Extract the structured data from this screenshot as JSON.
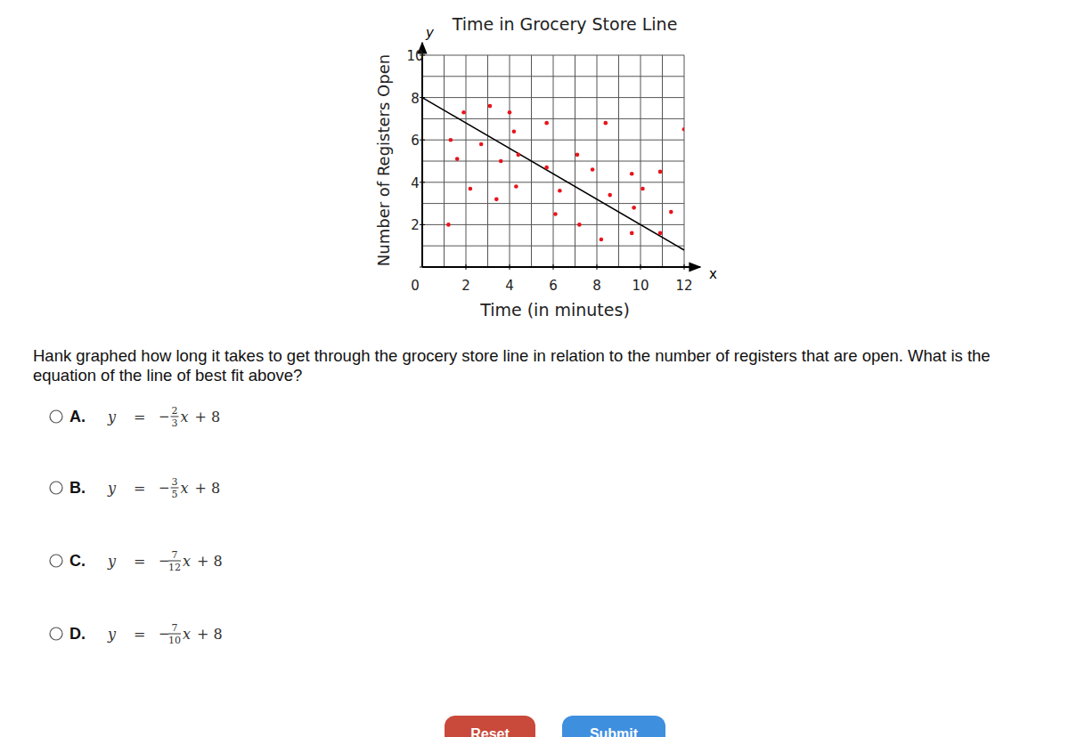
{
  "chart_data": {
    "type": "scatter",
    "title": "Time in Grocery Store Line",
    "x_label": "Time (in minutes)",
    "y_label": "Number of Registers Open",
    "x_symbol": "x",
    "y_symbol": "y",
    "x": [
      1.2,
      1.3,
      1.6,
      1.9,
      2.2,
      2.7,
      3.1,
      3.4,
      3.6,
      4.0,
      4.2,
      4.3,
      4.4,
      5.7,
      5.7,
      6.1,
      6.3,
      7.1,
      7.2,
      7.8,
      8.2,
      8.4,
      8.6,
      9.6,
      9.6,
      9.7,
      10.1,
      10.9,
      10.9,
      11.4,
      12.0
    ],
    "values": [
      2.0,
      6.0,
      5.1,
      7.3,
      3.7,
      5.8,
      7.6,
      3.2,
      5.0,
      7.3,
      6.4,
      3.8,
      5.3,
      6.8,
      4.7,
      2.5,
      3.6,
      5.3,
      2.0,
      4.6,
      1.3,
      6.8,
      3.4,
      4.4,
      1.6,
      2.8,
      3.7,
      4.5,
      1.6,
      2.6,
      6.5
    ],
    "color": "#e8141b",
    "marker": "circle",
    "trend_line": {
      "x": [
        0,
        12
      ],
      "values": [
        8,
        0.8
      ],
      "color": "#000000"
    },
    "xlim": [
      0,
      12
    ],
    "ylim": [
      0,
      10
    ],
    "xticks": [
      2,
      4,
      6,
      8,
      10,
      12
    ],
    "yticks": [
      0,
      2,
      4,
      6,
      8,
      10
    ],
    "xgrid": [
      0,
      1,
      2,
      3,
      4,
      5,
      6,
      7,
      8,
      9,
      10,
      11,
      12
    ],
    "ygrid": [
      0,
      1,
      2,
      3,
      4,
      5,
      6,
      7,
      8,
      9,
      10
    ],
    "grid": true
  },
  "question": [
    "Hank graphed how long it takes to get through the grocery store line in relation to the number of registers that are open. What is the",
    "equation of the line of best fit above?"
  ],
  "options": [
    {
      "letter": "A.",
      "lhs": "y",
      "eq": "=",
      "sign": "−",
      "num": "2",
      "den": "3",
      "var": "x",
      "rest": "+ 8"
    },
    {
      "letter": "B.",
      "lhs": "y",
      "eq": "=",
      "sign": "−",
      "num": "3",
      "den": "5",
      "var": "x",
      "rest": "+ 8"
    },
    {
      "letter": "C.",
      "lhs": "y",
      "eq": "=",
      "sign": "−",
      "num": "7",
      "den": "12",
      "var": "x",
      "rest": "+ 8"
    },
    {
      "letter": "D.",
      "lhs": "y",
      "eq": "=",
      "sign": "−",
      "num": "7",
      "den": "10",
      "var": "x",
      "rest": "+ 8"
    }
  ],
  "buttons": [
    "Reset",
    "Submit"
  ]
}
